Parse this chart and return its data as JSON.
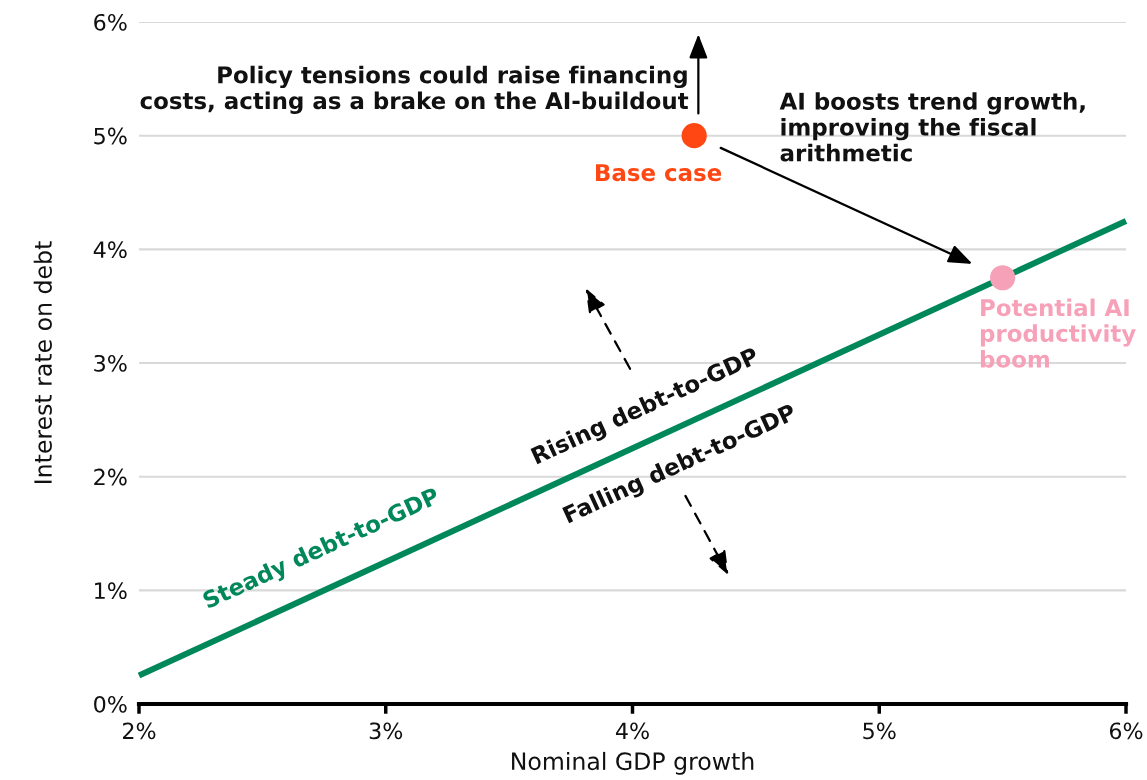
{
  "chart_data": {
    "type": "scatter",
    "xlabel": "Nominal GDP growth",
    "ylabel": "Interest rate on debt",
    "xlim": [
      2,
      6
    ],
    "ylim": [
      0,
      6
    ],
    "xticks": [
      {
        "value": 2,
        "label": "2%"
      },
      {
        "value": 3,
        "label": "3%"
      },
      {
        "value": 4,
        "label": "4%"
      },
      {
        "value": 5,
        "label": "5%"
      },
      {
        "value": 6,
        "label": "6%"
      }
    ],
    "yticks": [
      {
        "value": 0,
        "label": "0%"
      },
      {
        "value": 1,
        "label": "1%"
      },
      {
        "value": 2,
        "label": "2%"
      },
      {
        "value": 3,
        "label": "3%"
      },
      {
        "value": 4,
        "label": "4%"
      },
      {
        "value": 5,
        "label": "5%"
      },
      {
        "value": 6,
        "label": "6%"
      }
    ],
    "grid": "y",
    "legend": false,
    "series": [
      {
        "name": "Steady debt-to-GDP",
        "type": "line",
        "color": "#00875a",
        "x": [
          2,
          6
        ],
        "values": [
          0.25,
          4.25
        ]
      },
      {
        "name": "Base case",
        "marker": "circle",
        "color": "#ff4713",
        "x": [
          4.25
        ],
        "values": [
          5
        ]
      },
      {
        "name": "Potential AI\nproductivity\nboom",
        "marker": "circle",
        "color": "#f7a1b9",
        "x": [
          5.5
        ],
        "values": [
          3.75
        ]
      }
    ],
    "annotations": [
      {
        "text": "Policy tensions could raise financing\ncosts, acting as a brake on the AI-buildout",
        "x": 4.25,
        "y": 5
      },
      "AI boosts trend growth,\nimproving the fiscal\narithmetic",
      "Rising debt-to-GDP",
      "Falling debt-to-GDP"
    ]
  }
}
